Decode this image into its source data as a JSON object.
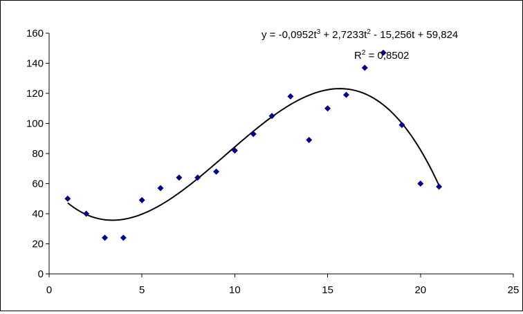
{
  "chart_data": {
    "type": "scatter",
    "title": "",
    "xlabel": "",
    "ylabel": "",
    "xlim": [
      0,
      25
    ],
    "ylim": [
      0,
      160
    ],
    "x_ticks": [
      0,
      5,
      10,
      15,
      20,
      25
    ],
    "y_ticks": [
      0,
      20,
      40,
      60,
      80,
      100,
      120,
      140,
      160
    ],
    "x_tick_labels": [
      "0",
      "5",
      "10",
      "15",
      "20",
      "25"
    ],
    "y_tick_labels": [
      "0",
      "20",
      "40",
      "60",
      "80",
      "100",
      "120",
      "140",
      "160"
    ],
    "grid": false,
    "legend": "none",
    "marker_color": "#00008B",
    "trend_color": "#000000",
    "points": [
      {
        "x": 1,
        "y": 50
      },
      {
        "x": 2,
        "y": 40
      },
      {
        "x": 3,
        "y": 24
      },
      {
        "x": 4,
        "y": 24
      },
      {
        "x": 5,
        "y": 49
      },
      {
        "x": 6,
        "y": 57
      },
      {
        "x": 7,
        "y": 64
      },
      {
        "x": 8,
        "y": 64
      },
      {
        "x": 9,
        "y": 68
      },
      {
        "x": 10,
        "y": 82
      },
      {
        "x": 11,
        "y": 93
      },
      {
        "x": 12,
        "y": 105
      },
      {
        "x": 13,
        "y": 118
      },
      {
        "x": 14,
        "y": 89
      },
      {
        "x": 15,
        "y": 110
      },
      {
        "x": 16,
        "y": 119
      },
      {
        "x": 17,
        "y": 137
      },
      {
        "x": 18,
        "y": 147
      },
      {
        "x": 19,
        "y": 99
      },
      {
        "x": 20,
        "y": 60
      },
      {
        "x": 21,
        "y": 58
      }
    ],
    "trendline": {
      "type": "polynomial",
      "order": 3,
      "coefficients": [
        -0.0952,
        2.7233,
        -15.256,
        59.824
      ],
      "x_range": [
        1,
        21
      ]
    },
    "annotations": {
      "equation_prefix": "y = -0,0952t",
      "equation_exp1": "3",
      "equation_mid": " + 2,7233t",
      "equation_exp2": "2",
      "equation_suffix": " - 15,256t + 59,824",
      "r2_prefix": "R",
      "r2_exp": "2",
      "r2_suffix": " = 0,8502"
    }
  }
}
